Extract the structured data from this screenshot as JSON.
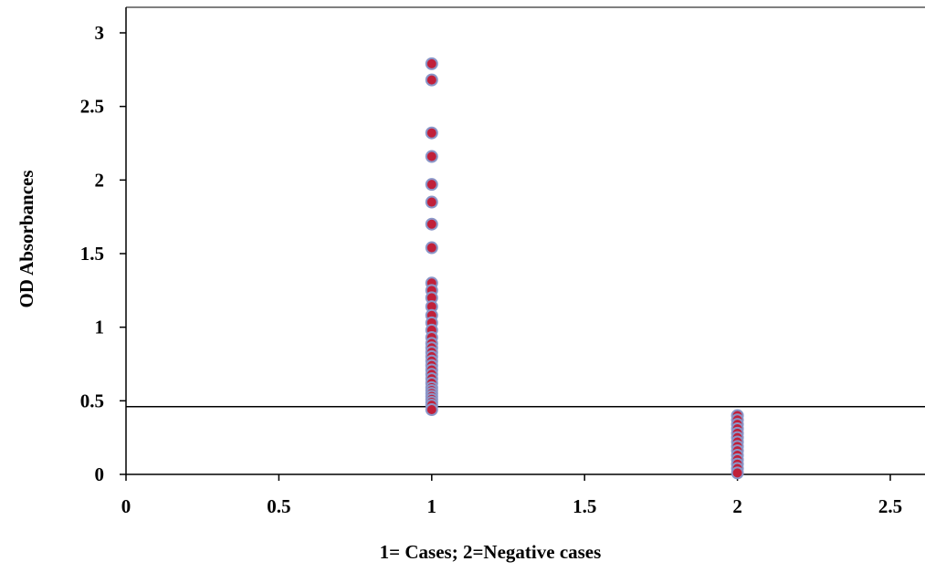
{
  "chart_data": {
    "type": "scatter",
    "title": "",
    "xlabel": "1= Cases; 2=Negative cases",
    "ylabel": "OD Absorbances",
    "xlim": [
      0,
      2.6
    ],
    "ylim": [
      0,
      3.1
    ],
    "x_ticks": [
      "0",
      "0.5",
      "1",
      "1.5",
      "2",
      "2.5"
    ],
    "y_ticks": [
      "0",
      "0.5",
      "1",
      "1.5",
      "2",
      "2.5",
      "3"
    ],
    "cutoff_line": 0.46,
    "grid": false,
    "legend": "none",
    "colors": {
      "marker_fill": "#c0203a",
      "marker_edge": "#8a96c8",
      "axis": "#000000"
    },
    "series": [
      {
        "x": [
          1,
          1,
          1,
          1,
          1,
          1,
          1,
          1,
          1,
          1,
          1,
          1,
          1,
          1,
          1,
          1,
          1,
          1,
          1,
          1,
          1,
          1,
          1,
          1,
          1,
          1,
          1,
          1,
          1,
          1,
          1,
          1,
          1,
          1
        ],
        "y": [
          2.79,
          2.68,
          2.32,
          2.16,
          1.97,
          1.85,
          1.7,
          1.54,
          1.3,
          1.25,
          1.2,
          1.14,
          1.08,
          1.03,
          0.98,
          0.93,
          0.89,
          0.86,
          0.83,
          0.8,
          0.77,
          0.74,
          0.71,
          0.68,
          0.65,
          0.62,
          0.59,
          0.57,
          0.55,
          0.53,
          0.51,
          0.49,
          0.47,
          0.44
        ]
      },
      {
        "x": [
          2,
          2,
          2,
          2,
          2,
          2,
          2,
          2,
          2,
          2,
          2,
          2,
          2,
          2
        ],
        "y": [
          0.4,
          0.37,
          0.34,
          0.31,
          0.28,
          0.25,
          0.22,
          0.19,
          0.16,
          0.13,
          0.1,
          0.07,
          0.04,
          0.01
        ]
      }
    ]
  }
}
